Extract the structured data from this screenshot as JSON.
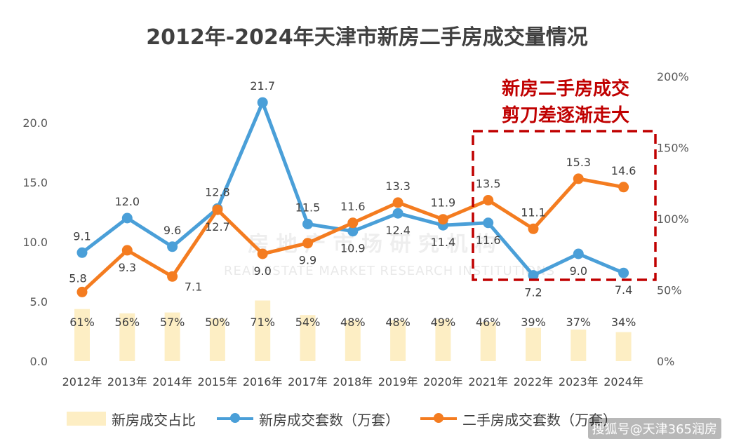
{
  "chart_data": {
    "type": "bar+line",
    "title": "2012年-2024年天津市新房二手房成交量情况",
    "categories": [
      "2012年",
      "2013年",
      "2014年",
      "2015年",
      "2016年",
      "2017年",
      "2018年",
      "2019年",
      "2020年",
      "2021年",
      "2022年",
      "2023年",
      "2024年"
    ],
    "left_axis": {
      "ylim": [
        0,
        25
      ],
      "ticks": [
        "0.0",
        "5.0",
        "10.0",
        "15.0",
        "20.0"
      ]
    },
    "right_axis": {
      "ylim": [
        0,
        2.0
      ],
      "ticks": [
        "0%",
        "50%",
        "100%",
        "150%",
        "200%"
      ]
    },
    "series": [
      {
        "name": "新房成交占比",
        "kind": "bar",
        "axis": "right",
        "color": "#fdeec4",
        "values": [
          0.61,
          0.56,
          0.57,
          0.5,
          0.71,
          0.54,
          0.48,
          0.48,
          0.49,
          0.46,
          0.39,
          0.37,
          0.34
        ],
        "labels": [
          "61%",
          "56%",
          "57%",
          "50%",
          "71%",
          "54%",
          "48%",
          "48%",
          "49%",
          "46%",
          "39%",
          "37%",
          "34%"
        ]
      },
      {
        "name": "新房成交套数（万套）",
        "kind": "line",
        "axis": "left",
        "color": "#4a9fd8",
        "values": [
          9.1,
          12.0,
          9.6,
          12.8,
          21.7,
          11.5,
          10.9,
          12.4,
          11.4,
          11.6,
          7.2,
          9.0,
          7.4
        ],
        "labels": [
          "9.1",
          "12.0",
          "9.6",
          "12.8",
          "21.7",
          "11.5",
          "10.9",
          "12.4",
          "11.4",
          "11.6",
          "7.2",
          "9.0",
          "7.4"
        ]
      },
      {
        "name": "二手房成交套数（万套）",
        "kind": "line",
        "axis": "left",
        "color": "#f47c20",
        "values": [
          5.8,
          9.3,
          7.1,
          12.7,
          9.0,
          9.9,
          11.6,
          13.3,
          11.9,
          13.5,
          11.1,
          15.3,
          14.6
        ],
        "labels": [
          "5.8",
          "9.3",
          "7.1",
          "12.7",
          "9.0",
          "9.9",
          "11.6",
          "13.3",
          "11.9",
          "13.5",
          "11.1",
          "15.3",
          "14.6"
        ]
      }
    ],
    "annotation": [
      "新房二手房成交",
      "剪刀差逐渐走大"
    ]
  },
  "watermark": {
    "chinese": "房 地 产 市 场 研 究 机 构",
    "english": "REAL ESTATE MARKET RESEARCH INSTITUTIONS"
  },
  "credit": "搜狐号@天津365润房"
}
